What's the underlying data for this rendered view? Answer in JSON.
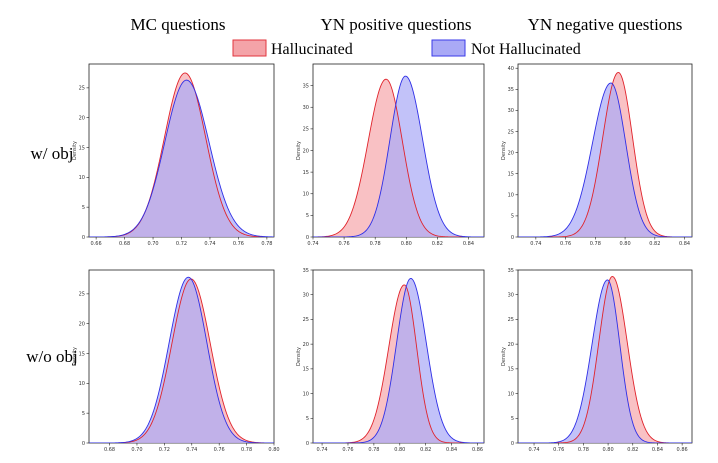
{
  "column_titles": [
    "MC questions",
    "YN positive questions",
    "YN negative questions"
  ],
  "row_labels": [
    "w/ obj",
    "w/o obj"
  ],
  "legend": [
    {
      "label": "Hallucinated",
      "fill": "#f4a3a8",
      "stroke": "#e2363e"
    },
    {
      "label": "Not Hallucinated",
      "fill": "#a9a9f6",
      "stroke": "#3a3ae8"
    }
  ],
  "colors": {
    "hallucinated_fill": "#f6a9ad",
    "hallucinated_line": "#e0232b",
    "not_hallucinated_fill": "#aaaaf6",
    "not_hallucinated_line": "#2f2fe6",
    "overlap": "#a95db2"
  },
  "chart_data": [
    {
      "type": "area",
      "row": "w/ obj",
      "column": "MC questions",
      "ylabel": "Density",
      "xlim": [
        0.655,
        0.785
      ],
      "ylim": [
        0,
        29
      ],
      "xticks": [
        0.66,
        0.68,
        0.7,
        0.72,
        0.74,
        0.76,
        0.78
      ],
      "xtick_labels": [
        "0.66",
        "0.68",
        "0.70",
        "0.72",
        "0.74",
        "0.76",
        "0.78"
      ],
      "yticks": [
        0,
        5,
        10,
        15,
        20,
        25
      ],
      "ytick_labels": [
        "0",
        "5",
        "10",
        "15",
        "20",
        "25"
      ],
      "series": [
        {
          "name": "Hallucinated",
          "peak_x": 0.7225,
          "peak_y": 27.5,
          "sigma_left": 0.0145,
          "sigma_right": 0.0145
        },
        {
          "name": "Not Hallucinated",
          "peak_x": 0.7235,
          "peak_y": 26.3,
          "sigma_left": 0.0152,
          "sigma_right": 0.0158
        }
      ]
    },
    {
      "type": "area",
      "row": "w/ obj",
      "column": "YN positive questions",
      "ylabel": "Density",
      "xlim": [
        0.74,
        0.85
      ],
      "ylim": [
        0,
        40
      ],
      "xticks": [
        0.74,
        0.76,
        0.78,
        0.8,
        0.82,
        0.84
      ],
      "xtick_labels": [
        "0.74",
        "0.76",
        "0.78",
        "0.80",
        "0.82",
        "0.84"
      ],
      "yticks": [
        0,
        5,
        10,
        15,
        20,
        25,
        30,
        35
      ],
      "ytick_labels": [
        "0",
        "5",
        "10",
        "15",
        "20",
        "25",
        "30",
        "35"
      ],
      "series": [
        {
          "name": "Hallucinated",
          "peak_x": 0.787,
          "peak_y": 36.5,
          "sigma_left": 0.0115,
          "sigma_right": 0.0105
        },
        {
          "name": "Not Hallucinated",
          "peak_x": 0.7995,
          "peak_y": 37.2,
          "sigma_left": 0.01,
          "sigma_right": 0.011
        }
      ]
    },
    {
      "type": "area",
      "row": "w/ obj",
      "column": "YN negative questions",
      "ylabel": "Density",
      "xlim": [
        0.728,
        0.845
      ],
      "ylim": [
        0,
        41
      ],
      "xticks": [
        0.74,
        0.76,
        0.78,
        0.8,
        0.82,
        0.84
      ],
      "xtick_labels": [
        "0.74",
        "0.76",
        "0.78",
        "0.80",
        "0.82",
        "0.84"
      ],
      "yticks": [
        0,
        5,
        10,
        15,
        20,
        25,
        30,
        35,
        40
      ],
      "ytick_labels": [
        "0",
        "5",
        "10",
        "15",
        "20",
        "25",
        "30",
        "35",
        "40"
      ],
      "series": [
        {
          "name": "Hallucinated",
          "peak_x": 0.7955,
          "peak_y": 39.0,
          "sigma_left": 0.0105,
          "sigma_right": 0.0095
        },
        {
          "name": "Not Hallucinated",
          "peak_x": 0.7905,
          "peak_y": 36.5,
          "sigma_left": 0.0125,
          "sigma_right": 0.01
        }
      ]
    },
    {
      "type": "area",
      "row": "w/o obj",
      "column": "MC questions",
      "ylabel": "Density",
      "xlim": [
        0.665,
        0.8
      ],
      "ylim": [
        0,
        29
      ],
      "xticks": [
        0.68,
        0.7,
        0.72,
        0.74,
        0.76,
        0.78,
        0.8
      ],
      "xtick_labels": [
        "0.68",
        "0.70",
        "0.72",
        "0.74",
        "0.76",
        "0.78",
        "0.80"
      ],
      "yticks": [
        0,
        5,
        10,
        15,
        20,
        25
      ],
      "ytick_labels": [
        "0",
        "5",
        "10",
        "15",
        "20",
        "25"
      ],
      "series": [
        {
          "name": "Hallucinated",
          "peak_x": 0.7395,
          "peak_y": 27.5,
          "sigma_left": 0.014,
          "sigma_right": 0.014
        },
        {
          "name": "Not Hallucinated",
          "peak_x": 0.7375,
          "peak_y": 27.8,
          "sigma_left": 0.014,
          "sigma_right": 0.0135
        }
      ]
    },
    {
      "type": "area",
      "row": "w/o obj",
      "column": "YN positive questions",
      "ylabel": "Density",
      "xlim": [
        0.733,
        0.865
      ],
      "ylim": [
        0,
        35
      ],
      "xticks": [
        0.74,
        0.76,
        0.78,
        0.8,
        0.82,
        0.84,
        0.86
      ],
      "xtick_labels": [
        "0.74",
        "0.76",
        "0.78",
        "0.80",
        "0.82",
        "0.84",
        "0.86"
      ],
      "yticks": [
        0,
        5,
        10,
        15,
        20,
        25,
        30,
        35
      ],
      "ytick_labels": [
        "0",
        "5",
        "10",
        "15",
        "20",
        "25",
        "30",
        "35"
      ],
      "series": [
        {
          "name": "Hallucinated",
          "peak_x": 0.8035,
          "peak_y": 32.0,
          "sigma_left": 0.012,
          "sigma_right": 0.0095
        },
        {
          "name": "Not Hallucinated",
          "peak_x": 0.8085,
          "peak_y": 33.3,
          "sigma_left": 0.011,
          "sigma_right": 0.012
        }
      ]
    },
    {
      "type": "area",
      "row": "w/o obj",
      "column": "YN negative questions",
      "ylabel": "Density",
      "xlim": [
        0.727,
        0.868
      ],
      "ylim": [
        0,
        35
      ],
      "xticks": [
        0.74,
        0.76,
        0.78,
        0.8,
        0.82,
        0.84,
        0.86
      ],
      "xtick_labels": [
        "0.74",
        "0.76",
        "0.78",
        "0.80",
        "0.82",
        "0.84",
        "0.86"
      ],
      "yticks": [
        0,
        5,
        10,
        15,
        20,
        25,
        30,
        35
      ],
      "ytick_labels": [
        "0",
        "5",
        "10",
        "15",
        "20",
        "25",
        "30",
        "35"
      ],
      "series": [
        {
          "name": "Hallucinated",
          "peak_x": 0.8035,
          "peak_y": 33.7,
          "sigma_left": 0.011,
          "sigma_right": 0.012
        },
        {
          "name": "Not Hallucinated",
          "peak_x": 0.7995,
          "peak_y": 33.0,
          "sigma_left": 0.0125,
          "sigma_right": 0.01
        }
      ]
    }
  ]
}
